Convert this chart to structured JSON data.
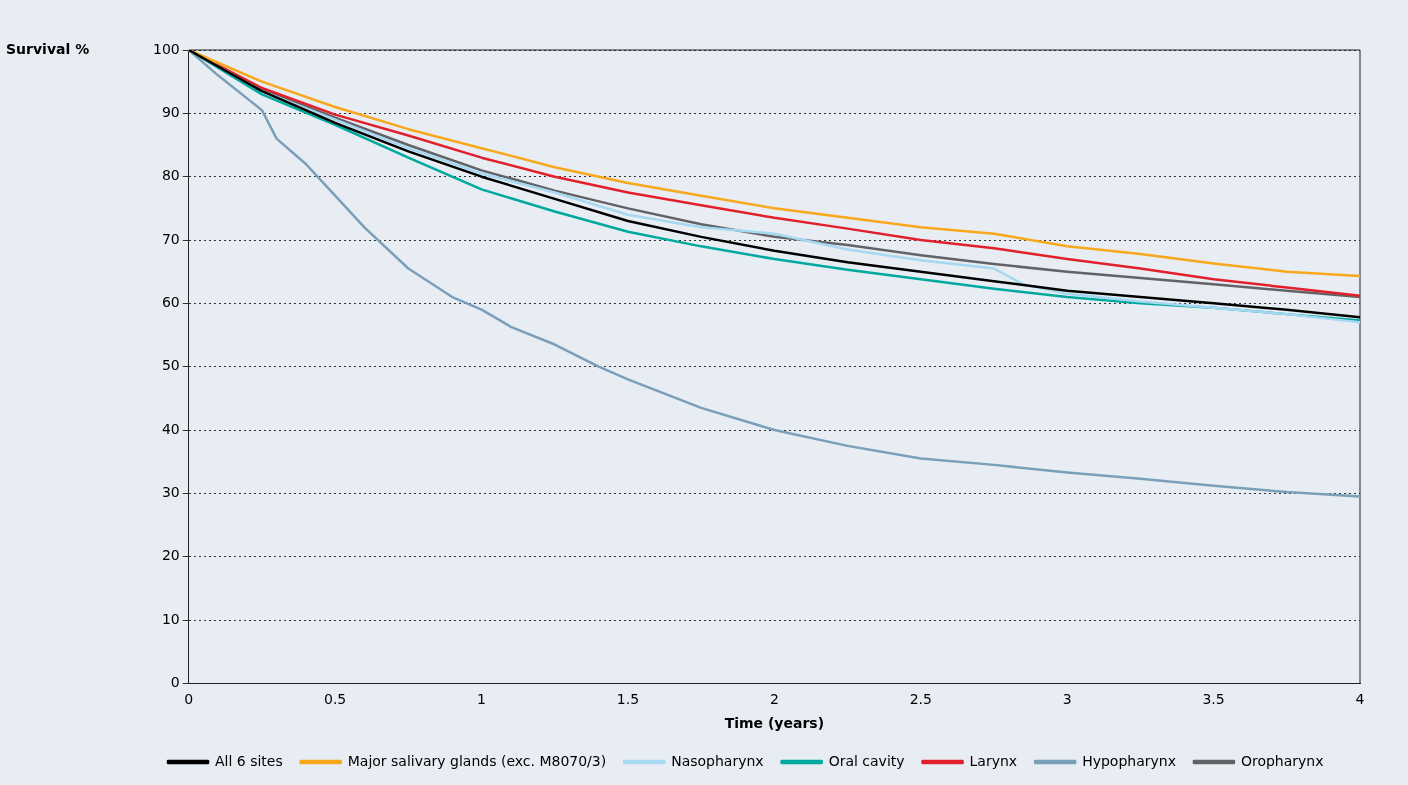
{
  "chart_data": {
    "type": "line",
    "xlabel": "Time (years)",
    "ylabel": "Survival %",
    "xlim": [
      0,
      4
    ],
    "xticks": [
      0,
      0.5,
      1,
      1.5,
      2,
      2.5,
      3,
      3.5,
      4
    ],
    "ylim": [
      0,
      100
    ],
    "yticks": [
      0,
      10,
      20,
      30,
      40,
      50,
      60,
      70,
      80,
      90,
      100
    ],
    "grid": "y",
    "legend": "bottom",
    "marker": "none",
    "line_style": "solid",
    "series": [
      {
        "name": "All 6 sites",
        "color": "#000000",
        "x": [
          0,
          0.25,
          0.5,
          0.75,
          1,
          1.25,
          1.5,
          1.75,
          2,
          2.25,
          2.5,
          2.75,
          3,
          3.25,
          3.5,
          3.75,
          4
        ],
        "values": [
          100,
          93.5,
          88.5,
          84,
          80,
          76.5,
          73,
          70.5,
          68.3,
          66.5,
          65,
          63.5,
          62,
          61,
          60,
          59,
          57.8
        ]
      },
      {
        "name": "Major salivary glands (exc. M8070/3)",
        "color": "#f7a81b",
        "x": [
          0,
          0.25,
          0.5,
          0.75,
          1,
          1.25,
          1.5,
          1.75,
          2,
          2.25,
          2.5,
          2.75,
          3,
          3.25,
          3.5,
          3.75,
          4
        ],
        "values": [
          100,
          95,
          91,
          87.5,
          84.5,
          81.5,
          79,
          77,
          75,
          73.5,
          72,
          71,
          69,
          67.8,
          66.3,
          65,
          64.3
        ]
      },
      {
        "name": "Nasopharynx",
        "color": "#a6d8f2",
        "x": [
          0,
          0.25,
          0.5,
          0.75,
          1,
          1.25,
          1.5,
          1.75,
          2,
          2.25,
          2.5,
          2.75,
          2.85,
          3,
          3.25,
          3.5,
          3.75,
          4
        ],
        "values": [
          100,
          93.5,
          89,
          84.5,
          80.5,
          77.5,
          74,
          72,
          71,
          68.5,
          66.8,
          65.5,
          63,
          61.5,
          60.3,
          59.3,
          58.3,
          57
        ]
      },
      {
        "name": "Oral cavity",
        "color": "#00a99d",
        "x": [
          0,
          0.25,
          0.5,
          0.75,
          1,
          1.25,
          1.5,
          1.75,
          2,
          2.25,
          2.5,
          2.75,
          3,
          3.25,
          3.5,
          3.75,
          4
        ],
        "values": [
          100,
          93,
          88.2,
          83,
          78,
          74.5,
          71.3,
          69,
          67,
          65.3,
          63.8,
          62.3,
          61,
          60,
          59.3,
          58.3,
          57.3
        ]
      },
      {
        "name": "Larynx",
        "color": "#e2202c",
        "x": [
          0,
          0.25,
          0.5,
          0.75,
          1,
          1.25,
          1.5,
          1.75,
          2,
          2.25,
          2.5,
          2.75,
          3,
          3.25,
          3.5,
          3.75,
          4
        ],
        "values": [
          100,
          94,
          89.8,
          86.5,
          83,
          80,
          77.5,
          75.5,
          73.5,
          71.8,
          70,
          68.7,
          67,
          65.5,
          63.8,
          62.5,
          61.2
        ]
      },
      {
        "name": "Hypopharynx",
        "color": "#7a9fb8",
        "x": [
          0,
          0.1,
          0.25,
          0.3,
          0.4,
          0.5,
          0.6,
          0.75,
          0.9,
          1,
          1.1,
          1.25,
          1.4,
          1.5,
          1.75,
          2,
          2.25,
          2.5,
          2.75,
          3,
          3.25,
          3.5,
          3.75,
          4
        ],
        "values": [
          100,
          96,
          90.5,
          86,
          82,
          77,
          72,
          65.5,
          61,
          59,
          56.3,
          53.5,
          50,
          48,
          43.5,
          40,
          37.5,
          35.5,
          34.5,
          33.3,
          32.3,
          31.2,
          30.2,
          29.5
        ]
      },
      {
        "name": "Oropharynx",
        "color": "#626366",
        "x": [
          0,
          0.25,
          0.5,
          0.75,
          1,
          1.25,
          1.5,
          1.75,
          2,
          2.25,
          2.5,
          2.75,
          3,
          3.25,
          3.5,
          3.75,
          4
        ],
        "values": [
          100,
          93.8,
          89.3,
          85,
          81,
          77.8,
          75,
          72.5,
          70.5,
          69.2,
          67.6,
          66.2,
          65,
          64,
          63,
          62,
          61
        ]
      }
    ]
  }
}
